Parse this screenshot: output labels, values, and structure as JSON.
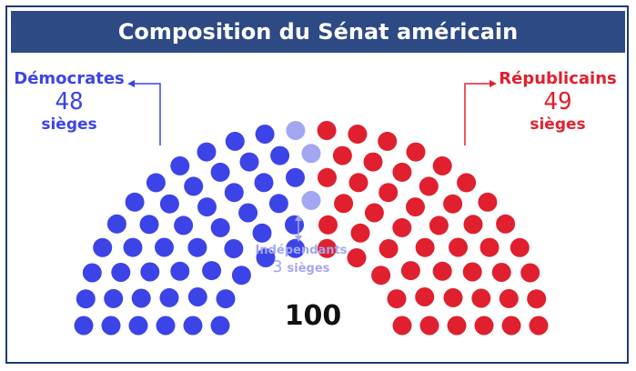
{
  "title": "Composition du Sénat américain",
  "parties": {
    "democrates": {
      "name": "Démocrates",
      "seats": "48",
      "unit": "sièges",
      "color": "#3c44e8"
    },
    "republicains": {
      "name": "Républicains",
      "seats": "49",
      "unit": "sièges",
      "color": "#e0202e"
    },
    "independants": {
      "name": "Indépendants",
      "seats": "3",
      "unit": "sièges",
      "color": "#a3a7f2"
    }
  },
  "total": "100"
}
